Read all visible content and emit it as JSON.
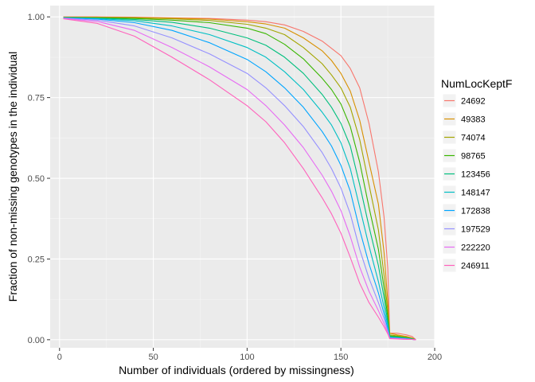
{
  "chart_data": {
    "type": "line",
    "title": "",
    "xlabel": "Number of individuals (ordered by missingness)",
    "ylabel": "Fraction of non-missing genotypes in the individual",
    "xlim": [
      -5,
      200
    ],
    "ylim": [
      -0.025,
      1.035
    ],
    "x_ticks": [
      0,
      50,
      100,
      150,
      200
    ],
    "x_tick_labels": [
      "0",
      "50",
      "100",
      "150",
      "200"
    ],
    "y_ticks": [
      0,
      0.25,
      0.5,
      0.75,
      1
    ],
    "y_tick_labels": [
      "0.00",
      "0.25",
      "0.50",
      "0.75",
      "1.00"
    ],
    "grid": true,
    "legend": {
      "title": "NumLocKeptF",
      "position": "right"
    },
    "series": [
      {
        "name": "24692",
        "color": "#F8766D",
        "points": [
          [
            2,
            1.0
          ],
          [
            20,
            1.0
          ],
          [
            40,
            0.999
          ],
          [
            60,
            0.997
          ],
          [
            80,
            0.995
          ],
          [
            100,
            0.99
          ],
          [
            110,
            0.985
          ],
          [
            120,
            0.975
          ],
          [
            130,
            0.955
          ],
          [
            140,
            0.925
          ],
          [
            150,
            0.88
          ],
          [
            155,
            0.84
          ],
          [
            160,
            0.78
          ],
          [
            165,
            0.67
          ],
          [
            170,
            0.52
          ],
          [
            173,
            0.38
          ],
          [
            175,
            0.22
          ],
          [
            176,
            0.02
          ],
          [
            180,
            0.02
          ],
          [
            185,
            0.015
          ],
          [
            188,
            0.01
          ],
          [
            190,
            0.0
          ]
        ]
      },
      {
        "name": "49383",
        "color": "#D89000",
        "points": [
          [
            2,
            0.999
          ],
          [
            20,
            0.999
          ],
          [
            40,
            0.998
          ],
          [
            60,
            0.996
          ],
          [
            80,
            0.993
          ],
          [
            100,
            0.985
          ],
          [
            110,
            0.978
          ],
          [
            120,
            0.965
          ],
          [
            130,
            0.935
          ],
          [
            140,
            0.895
          ],
          [
            145,
            0.865
          ],
          [
            150,
            0.825
          ],
          [
            155,
            0.77
          ],
          [
            160,
            0.68
          ],
          [
            165,
            0.55
          ],
          [
            170,
            0.42
          ],
          [
            173,
            0.27
          ],
          [
            175,
            0.12
          ],
          [
            176,
            0.02
          ],
          [
            180,
            0.015
          ],
          [
            185,
            0.01
          ],
          [
            188,
            0.005
          ],
          [
            190,
            0.0
          ]
        ]
      },
      {
        "name": "74074",
        "color": "#A3A500",
        "points": [
          [
            2,
            0.999
          ],
          [
            20,
            0.998
          ],
          [
            40,
            0.997
          ],
          [
            60,
            0.994
          ],
          [
            80,
            0.989
          ],
          [
            100,
            0.977
          ],
          [
            110,
            0.965
          ],
          [
            120,
            0.945
          ],
          [
            130,
            0.905
          ],
          [
            140,
            0.855
          ],
          [
            145,
            0.82
          ],
          [
            150,
            0.78
          ],
          [
            155,
            0.72
          ],
          [
            160,
            0.62
          ],
          [
            165,
            0.48
          ],
          [
            170,
            0.34
          ],
          [
            173,
            0.2
          ],
          [
            175,
            0.09
          ],
          [
            176,
            0.015
          ],
          [
            180,
            0.012
          ],
          [
            185,
            0.008
          ],
          [
            188,
            0.004
          ],
          [
            190,
            0.0
          ]
        ]
      },
      {
        "name": "98765",
        "color": "#39B600",
        "points": [
          [
            2,
            0.998
          ],
          [
            20,
            0.997
          ],
          [
            40,
            0.995
          ],
          [
            60,
            0.99
          ],
          [
            80,
            0.982
          ],
          [
            100,
            0.965
          ],
          [
            110,
            0.948
          ],
          [
            120,
            0.915
          ],
          [
            130,
            0.87
          ],
          [
            140,
            0.81
          ],
          [
            145,
            0.775
          ],
          [
            150,
            0.73
          ],
          [
            155,
            0.66
          ],
          [
            160,
            0.55
          ],
          [
            165,
            0.41
          ],
          [
            170,
            0.28
          ],
          [
            173,
            0.16
          ],
          [
            175,
            0.07
          ],
          [
            176,
            0.012
          ],
          [
            180,
            0.01
          ],
          [
            185,
            0.006
          ],
          [
            188,
            0.003
          ],
          [
            190,
            0.0
          ]
        ]
      },
      {
        "name": "123456",
        "color": "#00BF7D",
        "points": [
          [
            2,
            0.998
          ],
          [
            20,
            0.996
          ],
          [
            40,
            0.992
          ],
          [
            60,
            0.983
          ],
          [
            80,
            0.965
          ],
          [
            100,
            0.935
          ],
          [
            110,
            0.912
          ],
          [
            120,
            0.875
          ],
          [
            130,
            0.825
          ],
          [
            140,
            0.76
          ],
          [
            145,
            0.72
          ],
          [
            150,
            0.67
          ],
          [
            155,
            0.6
          ],
          [
            160,
            0.48
          ],
          [
            165,
            0.35
          ],
          [
            170,
            0.23
          ],
          [
            173,
            0.13
          ],
          [
            175,
            0.055
          ],
          [
            176,
            0.01
          ],
          [
            180,
            0.008
          ],
          [
            185,
            0.005
          ],
          [
            188,
            0.002
          ],
          [
            190,
            0.0
          ]
        ]
      },
      {
        "name": "148147",
        "color": "#00BFC4",
        "points": [
          [
            2,
            0.997
          ],
          [
            20,
            0.995
          ],
          [
            40,
            0.988
          ],
          [
            60,
            0.972
          ],
          [
            80,
            0.945
          ],
          [
            100,
            0.905
          ],
          [
            110,
            0.875
          ],
          [
            120,
            0.83
          ],
          [
            130,
            0.775
          ],
          [
            140,
            0.705
          ],
          [
            145,
            0.665
          ],
          [
            150,
            0.61
          ],
          [
            155,
            0.53
          ],
          [
            160,
            0.41
          ],
          [
            165,
            0.29
          ],
          [
            170,
            0.18
          ],
          [
            173,
            0.1
          ],
          [
            175,
            0.045
          ],
          [
            176,
            0.008
          ],
          [
            180,
            0.006
          ],
          [
            185,
            0.004
          ],
          [
            188,
            0.002
          ],
          [
            190,
            0.0
          ]
        ]
      },
      {
        "name": "172838",
        "color": "#00A5FF",
        "points": [
          [
            2,
            0.997
          ],
          [
            20,
            0.993
          ],
          [
            40,
            0.982
          ],
          [
            60,
            0.958
          ],
          [
            80,
            0.92
          ],
          [
            100,
            0.868
          ],
          [
            110,
            0.83
          ],
          [
            120,
            0.78
          ],
          [
            130,
            0.72
          ],
          [
            140,
            0.645
          ],
          [
            145,
            0.6
          ],
          [
            150,
            0.54
          ],
          [
            155,
            0.46
          ],
          [
            160,
            0.34
          ],
          [
            165,
            0.235
          ],
          [
            170,
            0.145
          ],
          [
            173,
            0.08
          ],
          [
            175,
            0.035
          ],
          [
            176,
            0.006
          ],
          [
            180,
            0.005
          ],
          [
            185,
            0.003
          ],
          [
            188,
            0.001
          ],
          [
            190,
            0.0
          ]
        ]
      },
      {
        "name": "197529",
        "color": "#9590FF",
        "points": [
          [
            2,
            0.996
          ],
          [
            20,
            0.99
          ],
          [
            40,
            0.972
          ],
          [
            60,
            0.935
          ],
          [
            80,
            0.885
          ],
          [
            100,
            0.825
          ],
          [
            110,
            0.78
          ],
          [
            120,
            0.725
          ],
          [
            130,
            0.66
          ],
          [
            140,
            0.58
          ],
          [
            145,
            0.53
          ],
          [
            150,
            0.47
          ],
          [
            155,
            0.39
          ],
          [
            160,
            0.28
          ],
          [
            165,
            0.19
          ],
          [
            170,
            0.115
          ],
          [
            173,
            0.065
          ],
          [
            175,
            0.028
          ],
          [
            176,
            0.005
          ],
          [
            180,
            0.004
          ],
          [
            185,
            0.002
          ],
          [
            188,
            0.001
          ],
          [
            190,
            0.0
          ]
        ]
      },
      {
        "name": "222220",
        "color": "#E76BF3",
        "points": [
          [
            2,
            0.995
          ],
          [
            20,
            0.986
          ],
          [
            40,
            0.958
          ],
          [
            60,
            0.905
          ],
          [
            80,
            0.845
          ],
          [
            100,
            0.775
          ],
          [
            110,
            0.725
          ],
          [
            120,
            0.665
          ],
          [
            130,
            0.595
          ],
          [
            140,
            0.51
          ],
          [
            145,
            0.46
          ],
          [
            150,
            0.4
          ],
          [
            155,
            0.32
          ],
          [
            160,
            0.225
          ],
          [
            165,
            0.15
          ],
          [
            170,
            0.09
          ],
          [
            173,
            0.05
          ],
          [
            175,
            0.022
          ],
          [
            176,
            0.004
          ],
          [
            180,
            0.003
          ],
          [
            185,
            0.002
          ],
          [
            188,
            0.001
          ],
          [
            190,
            0.0
          ]
        ]
      },
      {
        "name": "246911",
        "color": "#FF62BC",
        "points": [
          [
            2,
            0.994
          ],
          [
            20,
            0.98
          ],
          [
            40,
            0.94
          ],
          [
            60,
            0.875
          ],
          [
            80,
            0.805
          ],
          [
            100,
            0.725
          ],
          [
            110,
            0.675
          ],
          [
            120,
            0.61
          ],
          [
            130,
            0.53
          ],
          [
            140,
            0.44
          ],
          [
            145,
            0.39
          ],
          [
            150,
            0.33
          ],
          [
            155,
            0.255
          ],
          [
            160,
            0.175
          ],
          [
            165,
            0.115
          ],
          [
            170,
            0.07
          ],
          [
            173,
            0.04
          ],
          [
            175,
            0.018
          ],
          [
            176,
            0.003
          ],
          [
            180,
            0.002
          ],
          [
            185,
            0.001
          ],
          [
            188,
            0.001
          ],
          [
            190,
            0.0
          ]
        ]
      }
    ]
  }
}
